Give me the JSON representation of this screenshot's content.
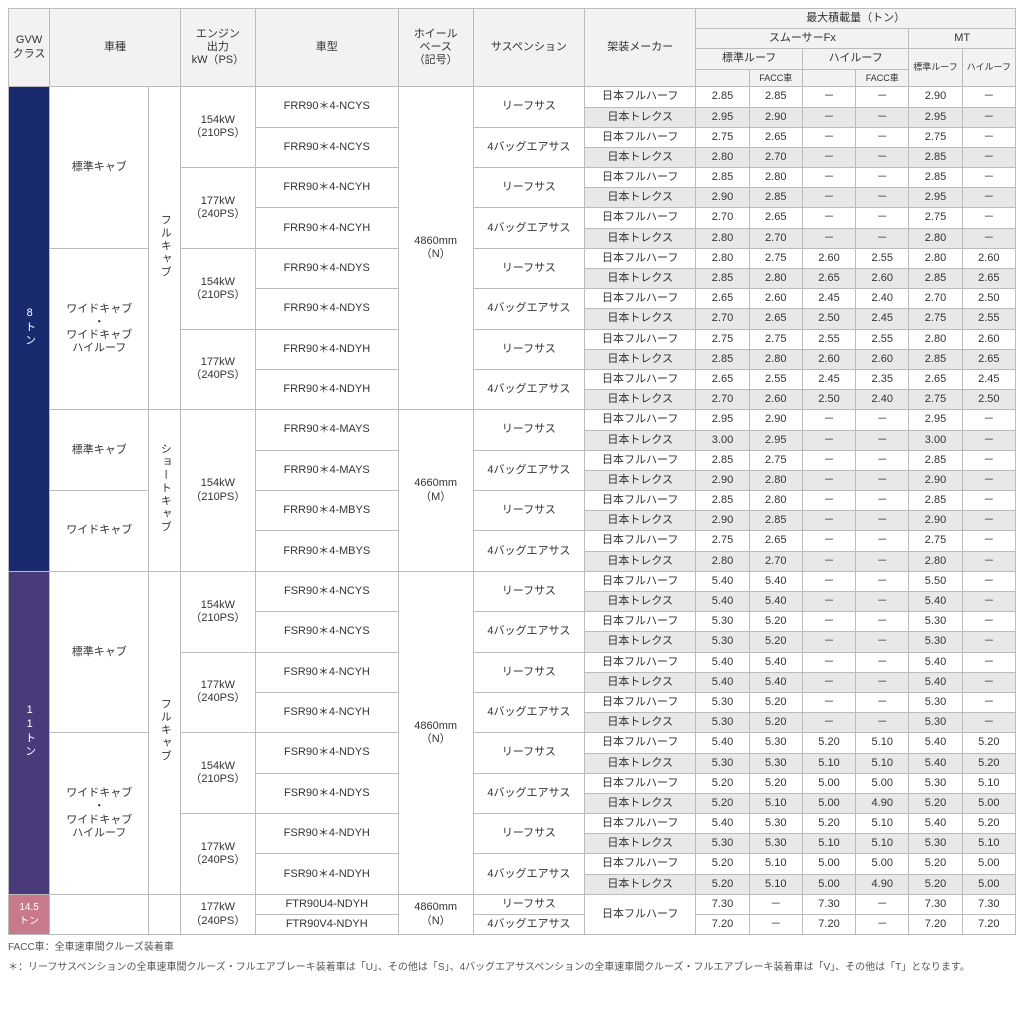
{
  "headers": {
    "gvw": "GVW\nクラス",
    "cab": "車種",
    "power": "エンジン\n出力\nkW（PS）",
    "model": "車型",
    "wheelbase": "ホイール\nベース\n（記号）",
    "suspension": "サスペンション",
    "maker": "架装メーカー",
    "payload": "最大積載量（トン）",
    "smoother": "スムーサーFx",
    "mt": "MT",
    "stdroof": "標準ルーフ",
    "hiroof": "ハイルーフ",
    "facc": "FACC車"
  },
  "gvw": {
    "t8": "8トン",
    "t11": "11トン",
    "t145": "14.5トン"
  },
  "cabs": {
    "std": "標準キャブ",
    "wide": "ワイドキャブ\n・\nワイドキャブ\nハイルーフ",
    "wideOnly": "ワイドキャブ",
    "full": "フルキャブ",
    "short": "ショートキャブ"
  },
  "power": {
    "p154": "154kW\n（210PS）",
    "p177": "177kW\n（240PS）"
  },
  "wheelbase": {
    "n": "4860mm\n（N）",
    "m": "4660mm\n（M）"
  },
  "susp": {
    "leaf": "リーフサス",
    "airbag": "4バッグエアサス"
  },
  "makers": {
    "fh": "日本フルハーフ",
    "tx": "日本トレクス"
  },
  "models": {
    "m1": "FRR90＊4-NCYS",
    "m2": "FRR90＊4-NCYS",
    "m3": "FRR90＊4-NCYH",
    "m4": "FRR90＊4-NCYH",
    "m5": "FRR90＊4-NDYS",
    "m6": "FRR90＊4-NDYS",
    "m7": "FRR90＊4-NDYH",
    "m8": "FRR90＊4-NDYH",
    "m9": "FRR90＊4-MAYS",
    "m10": "FRR90＊4-MAYS",
    "m11": "FRR90＊4-MBYS",
    "m12": "FRR90＊4-MBYS",
    "m13": "FSR90＊4-NCYS",
    "m14": "FSR90＊4-NCYS",
    "m15": "FSR90＊4-NCYH",
    "m16": "FSR90＊4-NCYH",
    "m17": "FSR90＊4-NDYS",
    "m18": "FSR90＊4-NDYS",
    "m19": "FSR90＊4-NDYH",
    "m20": "FSR90＊4-NDYH",
    "m21": "FTR90U4-NDYH",
    "m22": "FTR90V4-NDYH"
  },
  "rows": [
    {
      "v": [
        "2.85",
        "2.85",
        "－",
        "－",
        "2.90",
        "－"
      ]
    },
    {
      "v": [
        "2.95",
        "2.90",
        "－",
        "－",
        "2.95",
        "－"
      ]
    },
    {
      "v": [
        "2.75",
        "2.65",
        "－",
        "－",
        "2.75",
        "－"
      ]
    },
    {
      "v": [
        "2.80",
        "2.70",
        "－",
        "－",
        "2.85",
        "－"
      ]
    },
    {
      "v": [
        "2.85",
        "2.80",
        "－",
        "－",
        "2.85",
        "－"
      ]
    },
    {
      "v": [
        "2.90",
        "2.85",
        "－",
        "－",
        "2.95",
        "－"
      ]
    },
    {
      "v": [
        "2.70",
        "2.65",
        "－",
        "－",
        "2.75",
        "－"
      ]
    },
    {
      "v": [
        "2.80",
        "2.70",
        "－",
        "－",
        "2.80",
        "－"
      ]
    },
    {
      "v": [
        "2.80",
        "2.75",
        "2.60",
        "2.55",
        "2.80",
        "2.60"
      ]
    },
    {
      "v": [
        "2.85",
        "2.80",
        "2.65",
        "2.60",
        "2.85",
        "2.65"
      ]
    },
    {
      "v": [
        "2.65",
        "2.60",
        "2.45",
        "2.40",
        "2.70",
        "2.50"
      ]
    },
    {
      "v": [
        "2.70",
        "2.65",
        "2.50",
        "2.45",
        "2.75",
        "2.55"
      ]
    },
    {
      "v": [
        "2.75",
        "2.75",
        "2.55",
        "2.55",
        "2.80",
        "2.60"
      ]
    },
    {
      "v": [
        "2.85",
        "2.80",
        "2.60",
        "2.60",
        "2.85",
        "2.65"
      ]
    },
    {
      "v": [
        "2.65",
        "2.55",
        "2.45",
        "2.35",
        "2.65",
        "2.45"
      ]
    },
    {
      "v": [
        "2.70",
        "2.60",
        "2.50",
        "2.40",
        "2.75",
        "2.50"
      ]
    },
    {
      "v": [
        "2.95",
        "2.90",
        "－",
        "－",
        "2.95",
        "－"
      ]
    },
    {
      "v": [
        "3.00",
        "2.95",
        "－",
        "－",
        "3.00",
        "－"
      ]
    },
    {
      "v": [
        "2.85",
        "2.75",
        "－",
        "－",
        "2.85",
        "－"
      ]
    },
    {
      "v": [
        "2.90",
        "2.80",
        "－",
        "－",
        "2.90",
        "－"
      ]
    },
    {
      "v": [
        "2.85",
        "2.80",
        "－",
        "－",
        "2.85",
        "－"
      ]
    },
    {
      "v": [
        "2.90",
        "2.85",
        "－",
        "－",
        "2.90",
        "－"
      ]
    },
    {
      "v": [
        "2.75",
        "2.65",
        "－",
        "－",
        "2.75",
        "－"
      ]
    },
    {
      "v": [
        "2.80",
        "2.70",
        "－",
        "－",
        "2.80",
        "－"
      ]
    },
    {
      "v": [
        "5.40",
        "5.40",
        "－",
        "－",
        "5.50",
        "－"
      ]
    },
    {
      "v": [
        "5.40",
        "5.40",
        "－",
        "－",
        "5.40",
        "－"
      ]
    },
    {
      "v": [
        "5.30",
        "5.20",
        "－",
        "－",
        "5.30",
        "－"
      ]
    },
    {
      "v": [
        "5.30",
        "5.20",
        "－",
        "－",
        "5.30",
        "－"
      ]
    },
    {
      "v": [
        "5.40",
        "5.40",
        "－",
        "－",
        "5.40",
        "－"
      ]
    },
    {
      "v": [
        "5.40",
        "5.40",
        "－",
        "－",
        "5.40",
        "－"
      ]
    },
    {
      "v": [
        "5.30",
        "5.20",
        "－",
        "－",
        "5.30",
        "－"
      ]
    },
    {
      "v": [
        "5.30",
        "5.20",
        "－",
        "－",
        "5.30",
        "－"
      ]
    },
    {
      "v": [
        "5.40",
        "5.30",
        "5.20",
        "5.10",
        "5.40",
        "5.20"
      ]
    },
    {
      "v": [
        "5.30",
        "5.30",
        "5.10",
        "5.10",
        "5.40",
        "5.20"
      ]
    },
    {
      "v": [
        "5.20",
        "5.20",
        "5.00",
        "5.00",
        "5.30",
        "5.10"
      ]
    },
    {
      "v": [
        "5.20",
        "5.10",
        "5.00",
        "4.90",
        "5.20",
        "5.00"
      ]
    },
    {
      "v": [
        "5.40",
        "5.30",
        "5.20",
        "5.10",
        "5.40",
        "5.20"
      ]
    },
    {
      "v": [
        "5.30",
        "5.30",
        "5.10",
        "5.10",
        "5.30",
        "5.10"
      ]
    },
    {
      "v": [
        "5.20",
        "5.10",
        "5.00",
        "5.00",
        "5.20",
        "5.00"
      ]
    },
    {
      "v": [
        "5.20",
        "5.10",
        "5.00",
        "4.90",
        "5.20",
        "5.00"
      ]
    },
    {
      "v": [
        "7.30",
        "－",
        "7.30",
        "－",
        "7.30",
        "7.30"
      ]
    },
    {
      "v": [
        "7.20",
        "－",
        "7.20",
        "－",
        "7.20",
        "7.20"
      ]
    }
  ],
  "footer": {
    "l1": "FACC車：全車速車間クルーズ装着車",
    "l2": "＊：リーフサスペンションの全車速車間クルーズ・フルエアブレーキ装着車は「U」、その他は「S」、4バッグエアサスペンションの全車速車間クルーズ・フルエアブレーキ装着車は「V」、その他は「T」となります。"
  }
}
